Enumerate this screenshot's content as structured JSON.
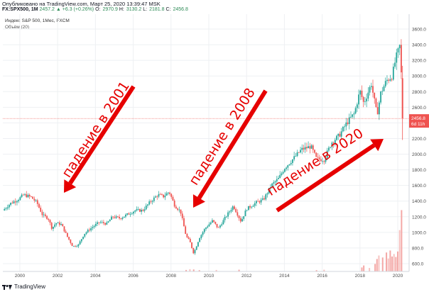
{
  "header": {
    "published": "Опубликовано на TradingView.com, Март 25, 2020 13:39:47 MSK",
    "symbol": "FX:SPX500, 1M",
    "last": "2457.2",
    "change": "▲ +6.3 (+0.26%)",
    "o_label": "O:",
    "o_value": "2970.9",
    "h_label": "H:",
    "h_value": "3130.2",
    "l_label": "L:",
    "l_value": "2181.8",
    "c_label": "C:",
    "c_value": "2456.8",
    "index_line": "Индекс S&P 500, 1Мес, FXCM",
    "volume_line": "Объём (20)"
  },
  "price_tag": {
    "value": "2456.8",
    "countdown": "6d 11h"
  },
  "annotations": [
    "падение в 2001",
    "падение в 2008",
    "падение в 2020"
  ],
  "branding": {
    "logo_text": "TradingView"
  },
  "colors": {
    "up": "#26a69a",
    "down": "#ef5350",
    "arrow": "#e60000",
    "last_price": "#ef5350"
  },
  "chart_data": {
    "type": "candlestick",
    "title": "",
    "xlabel": "",
    "ylabel": "",
    "x_ticks": [
      "2000",
      "2002",
      "2004",
      "2006",
      "2008",
      "2010",
      "2012",
      "2014",
      "2016",
      "2018",
      "2020"
    ],
    "y_ticks": [
      "3600.0",
      "3400.0",
      "3200.0",
      "3000.0",
      "2800.0",
      "2600.0",
      "2400.0",
      "2200.0",
      "2000.0",
      "1800.0",
      "1600.0",
      "1400.0",
      "1200.0",
      "1000.0",
      "800.0",
      "600.0"
    ],
    "ylim": [
      500,
      3700
    ],
    "xlim": [
      1999.1,
      2020.6
    ],
    "last_price": 2456.8,
    "grid": true,
    "price_series": {
      "name": "",
      "points": [
        [
          1999.1,
          1280
        ],
        [
          1999.5,
          1370
        ],
        [
          1999.9,
          1420
        ],
        [
          2000.2,
          1480
        ],
        [
          2000.6,
          1450
        ],
        [
          2000.9,
          1380
        ],
        [
          2001.2,
          1220
        ],
        [
          2001.5,
          1180
        ],
        [
          2001.7,
          1050
        ],
        [
          2001.9,
          1120
        ],
        [
          2002.2,
          1100
        ],
        [
          2002.5,
          950
        ],
        [
          2002.8,
          820
        ],
        [
          2003.1,
          840
        ],
        [
          2003.4,
          980
        ],
        [
          2003.8,
          1060
        ],
        [
          2004.2,
          1130
        ],
        [
          2004.6,
          1110
        ],
        [
          2004.9,
          1200
        ],
        [
          2005.3,
          1180
        ],
        [
          2005.7,
          1230
        ],
        [
          2006.1,
          1280
        ],
        [
          2006.5,
          1280
        ],
        [
          2006.9,
          1390
        ],
        [
          2007.3,
          1480
        ],
        [
          2007.6,
          1460
        ],
        [
          2007.9,
          1520
        ],
        [
          2008.2,
          1340
        ],
        [
          2008.5,
          1270
        ],
        [
          2008.8,
          950
        ],
        [
          2009.0,
          880
        ],
        [
          2009.2,
          730
        ],
        [
          2009.5,
          930
        ],
        [
          2009.8,
          1050
        ],
        [
          2010.2,
          1150
        ],
        [
          2010.5,
          1050
        ],
        [
          2010.9,
          1200
        ],
        [
          2011.3,
          1340
        ],
        [
          2011.7,
          1140
        ],
        [
          2012.0,
          1300
        ],
        [
          2012.5,
          1380
        ],
        [
          2012.9,
          1420
        ],
        [
          2013.3,
          1600
        ],
        [
          2013.7,
          1690
        ],
        [
          2014.0,
          1820
        ],
        [
          2014.5,
          1950
        ],
        [
          2014.9,
          2060
        ],
        [
          2015.4,
          2100
        ],
        [
          2015.7,
          1940
        ],
        [
          2016.1,
          1930
        ],
        [
          2016.5,
          2150
        ],
        [
          2016.9,
          2240
        ],
        [
          2017.3,
          2400
        ],
        [
          2017.7,
          2520
        ],
        [
          2018.0,
          2810
        ],
        [
          2018.2,
          2650
        ],
        [
          2018.6,
          2900
        ],
        [
          2018.9,
          2500
        ],
        [
          2019.1,
          2780
        ],
        [
          2019.4,
          2940
        ],
        [
          2019.7,
          3000
        ],
        [
          2019.9,
          3230
        ],
        [
          2020.0,
          3300
        ],
        [
          2020.1,
          3380
        ],
        [
          2020.2,
          2960
        ],
        [
          2020.25,
          2457
        ]
      ]
    },
    "volume": {
      "name": "Объём (20)",
      "ylim": [
        0,
        1350
      ],
      "bars": [
        [
          2008.8,
          30
        ],
        [
          2009.0,
          45
        ],
        [
          2009.2,
          40
        ],
        [
          2009.5,
          25
        ],
        [
          2010.4,
          30
        ],
        [
          2011.6,
          35
        ],
        [
          2015.7,
          25
        ],
        [
          2016.1,
          35
        ],
        [
          2018.1,
          80
        ],
        [
          2018.2,
          120
        ],
        [
          2018.5,
          70
        ],
        [
          2018.8,
          150
        ],
        [
          2018.9,
          250
        ],
        [
          2019.0,
          320
        ],
        [
          2019.2,
          280
        ],
        [
          2019.4,
          380
        ],
        [
          2019.5,
          260
        ],
        [
          2019.6,
          420
        ],
        [
          2019.7,
          300
        ],
        [
          2019.8,
          350
        ],
        [
          2019.9,
          290
        ],
        [
          2020.0,
          400
        ],
        [
          2020.1,
          830
        ],
        [
          2020.2,
          1230
        ]
      ]
    }
  }
}
